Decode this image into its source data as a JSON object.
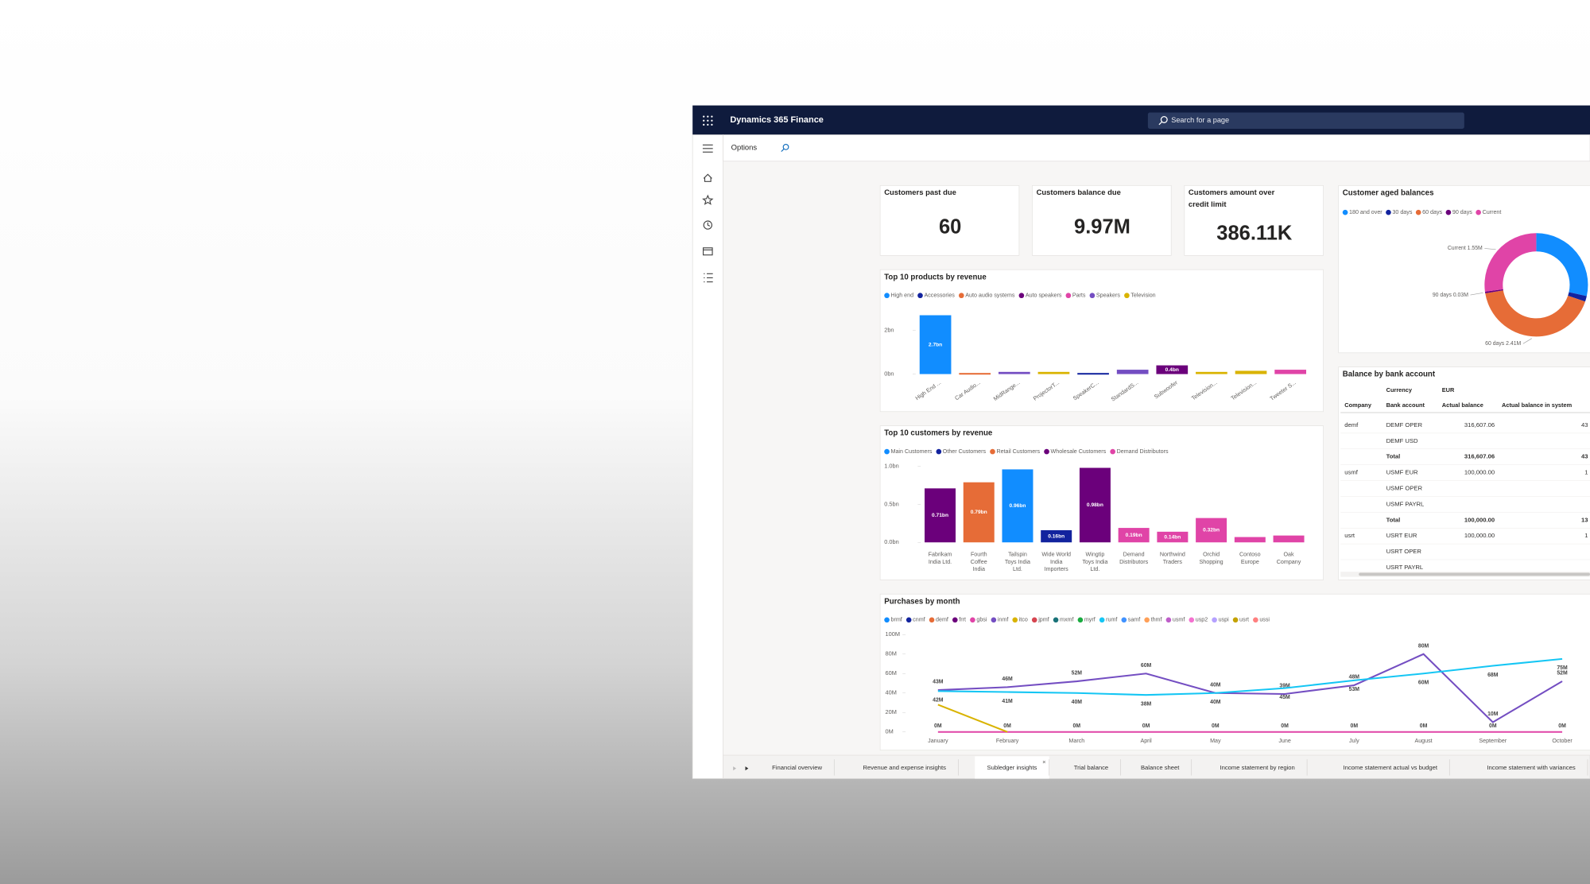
{
  "app": {
    "title": "Dynamics 365 Finance",
    "search": "Search for a page",
    "options": "Options"
  },
  "kpis": [
    {
      "title": "Customers past due",
      "value": 60
    },
    {
      "title": "Customers balance due",
      "value": "9.97M"
    },
    {
      "title": "Customers amount over credit limit",
      "value": "386.11K"
    }
  ],
  "aged_balances": {
    "type": "pie",
    "title": "Customer aged balances",
    "categories": [
      "180 and over",
      "30 days",
      "60 days",
      "90 days",
      "Current"
    ],
    "values": [
      1.63,
      0.1,
      2.41,
      0.03,
      1.55
    ],
    "value_labels": [
      null,
      null,
      "60 days 2.41M",
      "90 days 0.03M",
      "Current 1.55M"
    ],
    "colors": [
      "#118dff",
      "#12239e",
      "#e66c37",
      "#6b007b",
      "#e044a7"
    ]
  },
  "products": {
    "type": "bar",
    "title": "Top 10 products by revenue",
    "legend": [
      {
        "name": "High end",
        "color": "#118dff"
      },
      {
        "name": "Accessories",
        "color": "#12239e"
      },
      {
        "name": "Auto audio systems",
        "color": "#e66c37"
      },
      {
        "name": "Auto speakers",
        "color": "#6b007b"
      },
      {
        "name": "Parts",
        "color": "#e044a7"
      },
      {
        "name": "Speakers",
        "color": "#744ec2"
      },
      {
        "name": "Television",
        "color": "#d9b300"
      }
    ],
    "categories": [
      "High End ...",
      "Car Audio...",
      "MidRange...",
      "ProjectorT...",
      "SpeakerC...",
      "StandardS...",
      "Subwoofer",
      "Television...",
      "Television...",
      "Tweeter S..."
    ],
    "values": [
      2.7,
      0.05,
      0.1,
      0.1,
      0.05,
      0.2,
      0.4,
      0.1,
      0.15,
      0.2
    ],
    "value_labels": [
      "2.7bn",
      null,
      null,
      null,
      null,
      null,
      "0.4bn",
      null,
      null,
      null
    ],
    "colors": [
      "#118dff",
      "#e66c37",
      "#744ec2",
      "#d9b300",
      "#12239e",
      "#744ec2",
      "#6b007b",
      "#d9b300",
      "#d9b300",
      "#e044a7"
    ],
    "ylim": [
      0,
      3
    ],
    "yticks": [
      {
        "value": 0,
        "label": "0bn"
      },
      {
        "value": 2,
        "label": "2bn"
      }
    ]
  },
  "customers": {
    "type": "bar",
    "title": "Top 10 customers by revenue",
    "legend": [
      {
        "name": "Main Customers",
        "color": "#118dff"
      },
      {
        "name": "Other Customers",
        "color": "#12239e"
      },
      {
        "name": "Retail Customers",
        "color": "#e66c37"
      },
      {
        "name": "Wholesale Customers",
        "color": "#6b007b"
      },
      {
        "name": "Demand Distributors",
        "color": "#e044a7"
      }
    ],
    "categories": [
      "Fabrikam India Ltd.",
      "Fourth Coffee India",
      "Tailspin Toys India Ltd.",
      "Wide World India Importers",
      "Wingtip Toys India Ltd.",
      "Demand Distributors",
      "Northwind Traders",
      "Orchid Shopping",
      "Contoso Europe",
      "Oak Company"
    ],
    "values": [
      0.71,
      0.79,
      0.96,
      0.16,
      0.98,
      0.19,
      0.14,
      0.32,
      0.07,
      0.09
    ],
    "value_labels": [
      "0.71bn",
      "0.79bn",
      "0.96bn",
      "0.16bn",
      "0.98bn",
      "0.19bn",
      "0.14bn",
      "0.32bn",
      null,
      null
    ],
    "colors": [
      "#6b007b",
      "#e66c37",
      "#118dff",
      "#12239e",
      "#6b007b",
      "#e044a7",
      "#e044a7",
      "#e044a7",
      "#e044a7",
      "#e044a7"
    ],
    "ylim": [
      0,
      1
    ],
    "yticks": [
      {
        "value": 0,
        "label": "0.0bn"
      },
      {
        "value": 0.5,
        "label": "0.5bn"
      },
      {
        "value": 1,
        "label": "1.0bn"
      }
    ]
  },
  "bank": {
    "title": "Balance by bank account",
    "currency": [
      "Currency",
      "EUR"
    ],
    "columns": [
      "Company",
      "Bank account",
      "Actual balance",
      "Actual balance in system"
    ],
    "rows": [
      [
        "demf",
        "DEMF OPER",
        "316,607.06",
        "43"
      ],
      [
        null,
        "DEMF USD",
        null,
        null
      ],
      [
        null,
        "Total",
        "316,607.06",
        "43"
      ],
      [
        "usmf",
        "USMF EUR",
        "100,000.00",
        "1"
      ],
      [
        null,
        "USMF OPER",
        null,
        null
      ],
      [
        null,
        "USMF PAYRL",
        null,
        null
      ],
      [
        null,
        "Total",
        "100,000.00",
        "13"
      ],
      [
        "usrt",
        "USRT EUR",
        "100,000.00",
        "1"
      ],
      [
        null,
        "USRT OPER",
        null,
        null
      ],
      [
        null,
        "USRT PAYRL",
        null,
        null
      ]
    ]
  },
  "purchases": {
    "type": "line",
    "title": "Purchases by month",
    "categories": [
      "January",
      "February",
      "March",
      "April",
      "May",
      "June",
      "July",
      "August",
      "September",
      "October"
    ],
    "ylim": [
      0,
      100
    ],
    "yticks": [
      {
        "value": 0,
        "label": "0M"
      },
      {
        "value": 20,
        "label": "20M"
      },
      {
        "value": 40,
        "label": "40M"
      },
      {
        "value": 60,
        "label": "60M"
      },
      {
        "value": 80,
        "label": "80M"
      },
      {
        "value": 100,
        "label": "100M"
      }
    ],
    "series": [
      {
        "name": "brmf",
        "color": "#118dff"
      },
      {
        "name": "cnmf",
        "color": "#12239e"
      },
      {
        "name": "demf",
        "color": "#e66c37"
      },
      {
        "name": "frrt",
        "color": "#6b007b"
      },
      {
        "name": "gbsi",
        "color": "#e044a7",
        "values": [
          0,
          0,
          0,
          0,
          0,
          0,
          0,
          0,
          0,
          0
        ],
        "value_labels": [
          "0M",
          "0M",
          "0M",
          "0M",
          "0M",
          "0M",
          "0M",
          "0M",
          "0M",
          "0M"
        ]
      },
      {
        "name": "inmf",
        "color": "#744ec2",
        "values": [
          43,
          46,
          52,
          60,
          40,
          39,
          48,
          80,
          10,
          52
        ],
        "value_labels": [
          "43M",
          "46M",
          "52M",
          "60M",
          "40M",
          "39M",
          "48M",
          "80M",
          "10M",
          "52M"
        ]
      },
      {
        "name": "itco",
        "color": "#d9b300",
        "values": [
          28,
          0,
          null,
          null,
          null,
          null,
          null,
          null,
          null,
          null
        ]
      },
      {
        "name": "jpmf",
        "color": "#d64550"
      },
      {
        "name": "mxmf",
        "color": "#197278"
      },
      {
        "name": "myrf",
        "color": "#1aab40"
      },
      {
        "name": "rumf",
        "color": "#15c6f4",
        "values": [
          42,
          41,
          40,
          38,
          40,
          45,
          53,
          60,
          68,
          75
        ],
        "value_labels": [
          "42M",
          "41M",
          "40M",
          "38M",
          "40M",
          "45M",
          "53M",
          "60M",
          "68M",
          "75M"
        ]
      },
      {
        "name": "samf",
        "color": "#4092ff"
      },
      {
        "name": "thmf",
        "color": "#ffa058"
      },
      {
        "name": "usmf",
        "color": "#be5dc9"
      },
      {
        "name": "usp2",
        "color": "#f472d0"
      },
      {
        "name": "uspi",
        "color": "#b5a1ff"
      },
      {
        "name": "usrt",
        "color": "#c4a200"
      },
      {
        "name": "ussi",
        "color": "#ff8080"
      }
    ]
  },
  "tabs": {
    "items": [
      "Financial overview",
      "Revenue and expense insights",
      "Subledger insights",
      "Trial balance",
      "Balance sheet",
      "Income statement by region",
      "Income statement actual vs budget",
      "Income statement with variances"
    ],
    "active": 2
  }
}
